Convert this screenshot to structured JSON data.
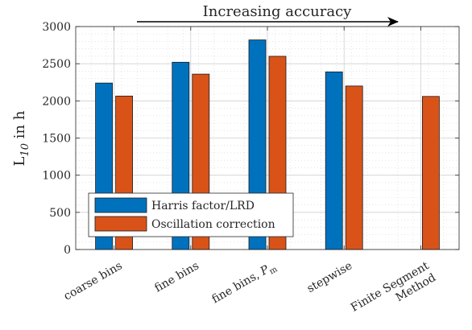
{
  "chart_data": {
    "type": "bar",
    "categories": [
      "coarse bins",
      "fine bins",
      "fine bins, P_m",
      "stepwise",
      "Finite Segment Method"
    ],
    "category_lines": [
      [
        "coarse bins"
      ],
      [
        "fine bins"
      ],
      [
        "fine bins, P_m"
      ],
      [
        "stepwise"
      ],
      [
        "Finite Segment",
        "Method"
      ]
    ],
    "series": [
      {
        "name": "Harris factor/LRD",
        "color": "#0072BD",
        "values": [
          2240,
          2520,
          2820,
          2390,
          null
        ]
      },
      {
        "name": "Oscillation correction",
        "color": "#D95319",
        "values": [
          2065,
          2360,
          2600,
          2200,
          2060
        ]
      }
    ],
    "ylabel": "L_10 in h",
    "ylim": [
      0,
      3000
    ],
    "yticks": [
      0,
      500,
      1000,
      1500,
      2000,
      2500,
      3000
    ],
    "grid": true,
    "minor_grid": true,
    "legend_position": "bottom-left",
    "annotation": "Increasing accuracy"
  }
}
